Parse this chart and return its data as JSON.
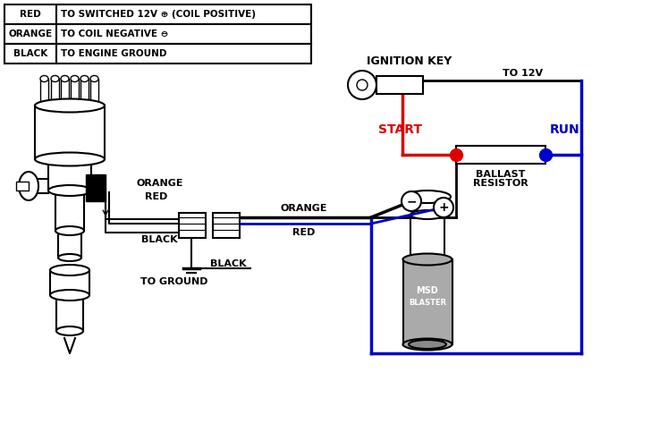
{
  "bg_color": "#ffffff",
  "table_rows": [
    {
      "label": "RED",
      "desc": "TO SWITCHED 12V ⊕ (COIL POSITIVE)"
    },
    {
      "label": "ORANGE",
      "desc": "TO COIL NEGATIVE ⊖"
    },
    {
      "label": "BLACK",
      "desc": "TO ENGINE GROUND"
    }
  ],
  "text": {
    "ignition_key": "IGNITION KEY",
    "to_12v": "TO 12V",
    "start": "START",
    "run": "RUN",
    "ballast1": "BALLAST",
    "ballast2": "RESISTOR",
    "orange1": "ORANGE",
    "red1": "RED",
    "black1": "BLACK",
    "orange2": "ORANGE",
    "red2": "RED",
    "black2": "BLACK",
    "to_ground": "TO GROUND",
    "msd1": "MSD",
    "msd2": "BLASTER",
    "minus": "−",
    "plus": "+"
  },
  "colors": {
    "red_wire": "#dd0000",
    "orange_wire": "#ff8800",
    "blue_wire": "#0000cc",
    "red_dot": "#dd0000",
    "blue_dot": "#0000cc"
  },
  "figsize": [
    7.28,
    4.83
  ],
  "dpi": 100
}
